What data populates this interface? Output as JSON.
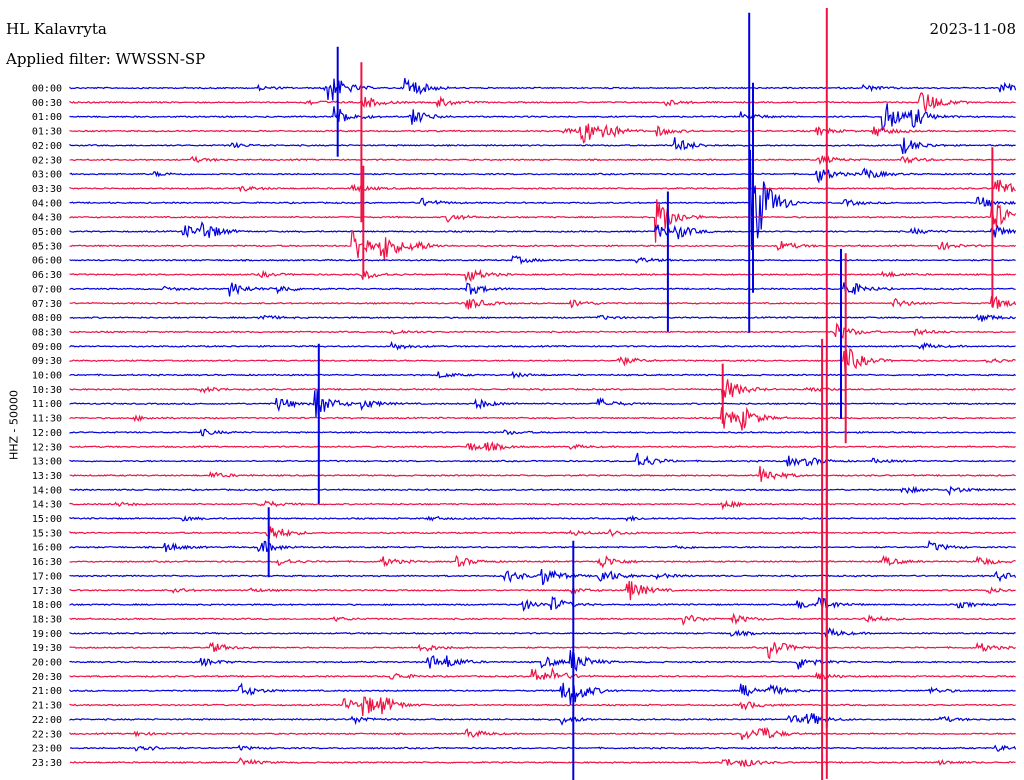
{
  "header": {
    "station": "HL Kalavryta",
    "date": "2023-11-08",
    "filter": "Applied filter: WWSSN-SP"
  },
  "chart_data": {
    "type": "line",
    "title": "HL Kalavryta",
    "ylabel": "HHZ - 50000",
    "colors": [
      "#0000dd",
      "#ee1144"
    ],
    "rows": [
      "00:00",
      "00:30",
      "01:00",
      "01:30",
      "02:00",
      "02:30",
      "03:00",
      "03:30",
      "04:00",
      "04:30",
      "05:00",
      "05:30",
      "06:00",
      "06:30",
      "07:00",
      "07:30",
      "08:00",
      "08:30",
      "09:00",
      "09:30",
      "10:00",
      "10:30",
      "11:00",
      "11:30",
      "12:00",
      "12:30",
      "13:00",
      "13:30",
      "14:00",
      "14:30",
      "15:00",
      "15:30",
      "16:00",
      "16:30",
      "17:00",
      "17:30",
      "18:00",
      "18:30",
      "19:00",
      "19:30",
      "20:00",
      "20:30",
      "21:00",
      "21:30",
      "22:00",
      "22:30",
      "23:00",
      "23:30"
    ],
    "events": [
      {
        "row": 0,
        "x": 0.2,
        "amp": 4
      },
      {
        "row": 0,
        "x": 0.84,
        "amp": 6
      },
      {
        "row": 0,
        "x": 0.985,
        "amp": 10
      },
      {
        "row": 0,
        "x": 0.27,
        "amp": 44
      },
      {
        "row": 0,
        "x": 0.355,
        "amp": 28
      },
      {
        "row": 1,
        "x": 0.25,
        "amp": 6
      },
      {
        "row": 1,
        "x": 0.31,
        "amp": 14
      },
      {
        "row": 1,
        "x": 0.39,
        "amp": 10
      },
      {
        "row": 1,
        "x": 0.9,
        "amp": 30
      },
      {
        "row": 1,
        "x": 0.63,
        "amp": 6
      },
      {
        "row": 2,
        "x": 0.28,
        "amp": 22
      },
      {
        "row": 2,
        "x": 0.36,
        "amp": 18
      },
      {
        "row": 2,
        "x": 0.71,
        "amp": 10
      },
      {
        "row": 2,
        "x": 0.86,
        "amp": 40
      },
      {
        "row": 2,
        "x": 0.89,
        "amp": 20
      },
      {
        "row": 3,
        "x": 0.54,
        "amp": 30
      },
      {
        "row": 3,
        "x": 0.56,
        "amp": 20
      },
      {
        "row": 3,
        "x": 0.62,
        "amp": 10
      },
      {
        "row": 3,
        "x": 0.79,
        "amp": 8
      },
      {
        "row": 3,
        "x": 0.85,
        "amp": 14
      },
      {
        "row": 3,
        "x": 0.52,
        "amp": 6
      },
      {
        "row": 4,
        "x": 0.64,
        "amp": 16
      },
      {
        "row": 4,
        "x": 0.88,
        "amp": 18
      },
      {
        "row": 4,
        "x": 0.17,
        "amp": 5
      },
      {
        "row": 5,
        "x": 0.13,
        "amp": 5
      },
      {
        "row": 5,
        "x": 0.79,
        "amp": 10
      },
      {
        "row": 5,
        "x": 0.88,
        "amp": 8
      },
      {
        "row": 6,
        "x": 0.09,
        "amp": 4
      },
      {
        "row": 6,
        "x": 0.84,
        "amp": 12
      },
      {
        "row": 6,
        "x": 0.79,
        "amp": 18
      },
      {
        "row": 7,
        "x": 0.18,
        "amp": 6
      },
      {
        "row": 7,
        "x": 0.3,
        "amp": 8
      },
      {
        "row": 7,
        "x": 0.98,
        "amp": 22
      },
      {
        "row": 8,
        "x": 0.72,
        "amp": 120
      },
      {
        "row": 8,
        "x": 0.37,
        "amp": 10
      },
      {
        "row": 8,
        "x": 0.82,
        "amp": 6
      },
      {
        "row": 8,
        "x": 0.96,
        "amp": 14
      },
      {
        "row": 9,
        "x": 0.4,
        "amp": 8
      },
      {
        "row": 9,
        "x": 0.62,
        "amp": 50
      },
      {
        "row": 9,
        "x": 0.975,
        "amp": 40
      },
      {
        "row": 10,
        "x": 0.12,
        "amp": 14
      },
      {
        "row": 10,
        "x": 0.14,
        "amp": 20
      },
      {
        "row": 10,
        "x": 0.62,
        "amp": 14
      },
      {
        "row": 10,
        "x": 0.64,
        "amp": 14
      },
      {
        "row": 10,
        "x": 0.89,
        "amp": 6
      },
      {
        "row": 10,
        "x": 0.975,
        "amp": 14
      },
      {
        "row": 11,
        "x": 0.3,
        "amp": 40
      },
      {
        "row": 11,
        "x": 0.33,
        "amp": 30
      },
      {
        "row": 11,
        "x": 0.36,
        "amp": 12
      },
      {
        "row": 11,
        "x": 0.75,
        "amp": 10
      },
      {
        "row": 11,
        "x": 0.92,
        "amp": 8
      },
      {
        "row": 12,
        "x": 0.47,
        "amp": 8
      },
      {
        "row": 12,
        "x": 0.6,
        "amp": 6
      },
      {
        "row": 13,
        "x": 0.2,
        "amp": 6
      },
      {
        "row": 13,
        "x": 0.31,
        "amp": 10
      },
      {
        "row": 13,
        "x": 0.42,
        "amp": 16
      },
      {
        "row": 13,
        "x": 0.86,
        "amp": 6
      },
      {
        "row": 14,
        "x": 0.17,
        "amp": 14
      },
      {
        "row": 14,
        "x": 0.1,
        "amp": 4
      },
      {
        "row": 14,
        "x": 0.22,
        "amp": 8
      },
      {
        "row": 14,
        "x": 0.42,
        "amp": 14
      },
      {
        "row": 14,
        "x": 0.82,
        "amp": 20
      },
      {
        "row": 15,
        "x": 0.42,
        "amp": 14
      },
      {
        "row": 15,
        "x": 0.53,
        "amp": 8
      },
      {
        "row": 15,
        "x": 0.87,
        "amp": 10
      },
      {
        "row": 15,
        "x": 0.975,
        "amp": 16
      },
      {
        "row": 16,
        "x": 0.2,
        "amp": 6
      },
      {
        "row": 16,
        "x": 0.96,
        "amp": 10
      },
      {
        "row": 16,
        "x": 0.56,
        "amp": 4
      },
      {
        "row": 17,
        "x": 0.34,
        "amp": 6
      },
      {
        "row": 17,
        "x": 0.81,
        "amp": 18
      },
      {
        "row": 17,
        "x": 0.895,
        "amp": 6
      },
      {
        "row": 18,
        "x": 0.34,
        "amp": 8
      },
      {
        "row": 18,
        "x": 0.9,
        "amp": 6
      },
      {
        "row": 19,
        "x": 0.58,
        "amp": 10
      },
      {
        "row": 19,
        "x": 0.82,
        "amp": 30
      },
      {
        "row": 19,
        "x": 0.97,
        "amp": 6
      },
      {
        "row": 20,
        "x": 0.39,
        "amp": 6
      },
      {
        "row": 20,
        "x": 0.47,
        "amp": 4
      },
      {
        "row": 21,
        "x": 0.14,
        "amp": 6
      },
      {
        "row": 21,
        "x": 0.69,
        "amp": 30
      },
      {
        "row": 21,
        "x": 0.78,
        "amp": 6
      },
      {
        "row": 22,
        "x": 0.22,
        "amp": 14
      },
      {
        "row": 22,
        "x": 0.26,
        "amp": 30
      },
      {
        "row": 22,
        "x": 0.31,
        "amp": 10
      },
      {
        "row": 22,
        "x": 0.43,
        "amp": 10
      },
      {
        "row": 22,
        "x": 0.56,
        "amp": 10
      },
      {
        "row": 23,
        "x": 0.07,
        "amp": 4
      },
      {
        "row": 23,
        "x": 0.69,
        "amp": 24
      },
      {
        "row": 23,
        "x": 0.71,
        "amp": 20
      },
      {
        "row": 24,
        "x": 0.14,
        "amp": 6
      },
      {
        "row": 24,
        "x": 0.46,
        "amp": 4
      },
      {
        "row": 25,
        "x": 0.42,
        "amp": 10
      },
      {
        "row": 25,
        "x": 0.44,
        "amp": 8
      },
      {
        "row": 25,
        "x": 0.53,
        "amp": 4
      },
      {
        "row": 26,
        "x": 0.6,
        "amp": 18
      },
      {
        "row": 26,
        "x": 0.76,
        "amp": 10
      },
      {
        "row": 26,
        "x": 0.78,
        "amp": 6
      },
      {
        "row": 26,
        "x": 0.85,
        "amp": 4
      },
      {
        "row": 27,
        "x": 0.15,
        "amp": 6
      },
      {
        "row": 27,
        "x": 0.73,
        "amp": 20
      },
      {
        "row": 28,
        "x": 0.88,
        "amp": 8
      },
      {
        "row": 28,
        "x": 0.93,
        "amp": 8
      },
      {
        "row": 29,
        "x": 0.05,
        "amp": 4
      },
      {
        "row": 29,
        "x": 0.2,
        "amp": 10
      },
      {
        "row": 29,
        "x": 0.69,
        "amp": 8
      },
      {
        "row": 30,
        "x": 0.12,
        "amp": 4
      },
      {
        "row": 30,
        "x": 0.38,
        "amp": 4
      },
      {
        "row": 30,
        "x": 0.59,
        "amp": 4
      },
      {
        "row": 31,
        "x": 0.21,
        "amp": 20
      },
      {
        "row": 31,
        "x": 0.53,
        "amp": 6
      },
      {
        "row": 31,
        "x": 0.57,
        "amp": 6
      },
      {
        "row": 32,
        "x": 0.1,
        "amp": 10
      },
      {
        "row": 32,
        "x": 0.2,
        "amp": 16
      },
      {
        "row": 32,
        "x": 0.91,
        "amp": 10
      },
      {
        "row": 32,
        "x": 0.64,
        "amp": 4
      },
      {
        "row": 33,
        "x": 0.22,
        "amp": 8
      },
      {
        "row": 33,
        "x": 0.33,
        "amp": 10
      },
      {
        "row": 33,
        "x": 0.41,
        "amp": 10
      },
      {
        "row": 33,
        "x": 0.56,
        "amp": 16
      },
      {
        "row": 33,
        "x": 0.86,
        "amp": 10
      },
      {
        "row": 33,
        "x": 0.96,
        "amp": 10
      },
      {
        "row": 34,
        "x": 0.46,
        "amp": 14
      },
      {
        "row": 34,
        "x": 0.5,
        "amp": 20
      },
      {
        "row": 34,
        "x": 0.56,
        "amp": 18
      },
      {
        "row": 34,
        "x": 0.62,
        "amp": 6
      },
      {
        "row": 34,
        "x": 0.98,
        "amp": 10
      },
      {
        "row": 35,
        "x": 0.11,
        "amp": 4
      },
      {
        "row": 35,
        "x": 0.19,
        "amp": 4
      },
      {
        "row": 35,
        "x": 0.53,
        "amp": 6
      },
      {
        "row": 35,
        "x": 0.59,
        "amp": 24
      },
      {
        "row": 35,
        "x": 0.97,
        "amp": 6
      },
      {
        "row": 36,
        "x": 0.48,
        "amp": 10
      },
      {
        "row": 36,
        "x": 0.51,
        "amp": 14
      },
      {
        "row": 36,
        "x": 0.77,
        "amp": 8
      },
      {
        "row": 36,
        "x": 0.79,
        "amp": 16
      },
      {
        "row": 36,
        "x": 0.94,
        "amp": 6
      },
      {
        "row": 37,
        "x": 0.28,
        "amp": 4
      },
      {
        "row": 37,
        "x": 0.65,
        "amp": 10
      },
      {
        "row": 37,
        "x": 0.7,
        "amp": 10
      },
      {
        "row": 37,
        "x": 0.84,
        "amp": 10
      },
      {
        "row": 38,
        "x": 0.7,
        "amp": 6
      },
      {
        "row": 38,
        "x": 0.8,
        "amp": 10
      },
      {
        "row": 39,
        "x": 0.15,
        "amp": 10
      },
      {
        "row": 39,
        "x": 0.37,
        "amp": 10
      },
      {
        "row": 39,
        "x": 0.74,
        "amp": 20
      },
      {
        "row": 39,
        "x": 0.96,
        "amp": 10
      },
      {
        "row": 40,
        "x": 0.14,
        "amp": 8
      },
      {
        "row": 40,
        "x": 0.38,
        "amp": 16
      },
      {
        "row": 40,
        "x": 0.4,
        "amp": 8
      },
      {
        "row": 40,
        "x": 0.5,
        "amp": 12
      },
      {
        "row": 40,
        "x": 0.53,
        "amp": 24
      },
      {
        "row": 40,
        "x": 0.77,
        "amp": 16
      },
      {
        "row": 41,
        "x": 0.34,
        "amp": 8
      },
      {
        "row": 41,
        "x": 0.49,
        "amp": 16
      },
      {
        "row": 41,
        "x": 0.51,
        "amp": 10
      },
      {
        "row": 41,
        "x": 0.79,
        "amp": 8
      },
      {
        "row": 42,
        "x": 0.18,
        "amp": 14
      },
      {
        "row": 42,
        "x": 0.52,
        "amp": 18
      },
      {
        "row": 42,
        "x": 0.53,
        "amp": 22
      },
      {
        "row": 42,
        "x": 0.71,
        "amp": 14
      },
      {
        "row": 42,
        "x": 0.74,
        "amp": 10
      },
      {
        "row": 42,
        "x": 0.91,
        "amp": 6
      },
      {
        "row": 43,
        "x": 0.29,
        "amp": 14
      },
      {
        "row": 43,
        "x": 0.31,
        "amp": 22
      },
      {
        "row": 43,
        "x": 0.33,
        "amp": 14
      },
      {
        "row": 43,
        "x": 0.71,
        "amp": 10
      },
      {
        "row": 44,
        "x": 0.3,
        "amp": 8
      },
      {
        "row": 44,
        "x": 0.52,
        "amp": 10
      },
      {
        "row": 44,
        "x": 0.76,
        "amp": 10
      },
      {
        "row": 44,
        "x": 0.78,
        "amp": 14
      },
      {
        "row": 44,
        "x": 0.92,
        "amp": 6
      },
      {
        "row": 45,
        "x": 0.07,
        "amp": 4
      },
      {
        "row": 45,
        "x": 0.42,
        "amp": 10
      },
      {
        "row": 45,
        "x": 0.71,
        "amp": 14
      },
      {
        "row": 45,
        "x": 0.73,
        "amp": 14
      },
      {
        "row": 46,
        "x": 0.07,
        "amp": 10
      },
      {
        "row": 46,
        "x": 0.18,
        "amp": 4
      },
      {
        "row": 46,
        "x": 0.98,
        "amp": 6
      },
      {
        "row": 47,
        "x": 0.18,
        "amp": 8
      },
      {
        "row": 47,
        "x": 0.69,
        "amp": 10
      },
      {
        "row": 47,
        "x": 0.71,
        "amp": 8
      },
      {
        "row": 47,
        "x": 0.92,
        "amp": 4
      }
    ],
    "long_spikes": [
      {
        "row": 8,
        "x": 0.718,
        "up": 190,
        "down": 130,
        "color": "#0000dd"
      },
      {
        "row": 8,
        "x": 0.722,
        "up": 120,
        "down": 90,
        "color": "#0000dd"
      },
      {
        "row": 22,
        "x": 0.69,
        "up": 40,
        "down": 20,
        "color": "#ee1144"
      },
      {
        "row": 37,
        "x": 0.795,
        "up": 280,
        "down": 170,
        "color": "#ee1144"
      },
      {
        "row": 37,
        "x": 0.8,
        "up": 200,
        "down": 160,
        "color": "#ee1144"
      },
      {
        "row": 0,
        "x": 0.8,
        "up": 80,
        "down": 640,
        "color": "#ee1144"
      },
      {
        "row": 1,
        "x": 0.308,
        "up": 40,
        "down": 120,
        "color": "#ee1144"
      },
      {
        "row": 2,
        "x": 0.283,
        "up": 70,
        "down": 40,
        "color": "#0000dd"
      },
      {
        "row": 11,
        "x": 0.31,
        "up": 80,
        "down": 30,
        "color": "#ee1144"
      },
      {
        "row": 22,
        "x": 0.263,
        "up": 60,
        "down": 100,
        "color": "#0000dd"
      },
      {
        "row": 42,
        "x": 0.532,
        "up": 150,
        "down": 90,
        "color": "#0000dd"
      },
      {
        "row": 9,
        "x": 0.975,
        "up": 70,
        "down": 90,
        "color": "#ee1144"
      },
      {
        "row": 10,
        "x": 0.632,
        "up": 40,
        "down": 100,
        "color": "#0000dd"
      },
      {
        "row": 14,
        "x": 0.815,
        "up": 40,
        "down": 130,
        "color": "#0000dd"
      },
      {
        "row": 15,
        "x": 0.82,
        "up": 50,
        "down": 140,
        "color": "#ee1144"
      },
      {
        "row": 32,
        "x": 0.21,
        "up": 40,
        "down": 30,
        "color": "#0000dd"
      }
    ]
  }
}
